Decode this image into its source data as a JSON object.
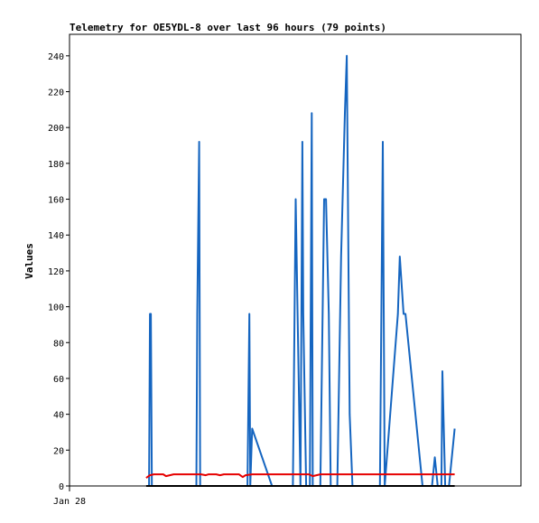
{
  "chart_data": {
    "type": "line",
    "title": "Telemetry for OE5YDL-8 over last 96 hours (79 points)",
    "xlabel": "",
    "ylabel": "Values",
    "x_ticks": [
      "Jan 28"
    ],
    "ylim": [
      0,
      252
    ],
    "y_ticks": [
      0,
      20,
      40,
      60,
      80,
      100,
      120,
      140,
      160,
      180,
      200,
      220,
      240
    ],
    "grid": false,
    "colors": {
      "blue": "#1565c0",
      "red": "#e60000",
      "black": "#000000"
    },
    "series": [
      {
        "color": "#1565c0",
        "points": [
          [
            26.0,
            0
          ],
          [
            26.1,
            0
          ],
          [
            26.2,
            96
          ],
          [
            26.3,
            96
          ],
          [
            26.4,
            0
          ],
          [
            31.0,
            0
          ],
          [
            31.1,
            0
          ],
          [
            31.2,
            96
          ],
          [
            31.4,
            192
          ],
          [
            31.5,
            0
          ],
          [
            36.5,
            0
          ],
          [
            36.7,
            96
          ],
          [
            36.8,
            0
          ],
          [
            37.0,
            32
          ],
          [
            39.1,
            0
          ],
          [
            41.3,
            0
          ],
          [
            41.6,
            160
          ],
          [
            42.1,
            0
          ],
          [
            42.3,
            192
          ],
          [
            42.4,
            96
          ],
          [
            42.7,
            0
          ],
          [
            43.1,
            0
          ],
          [
            43.3,
            208
          ],
          [
            43.4,
            0
          ],
          [
            43.7,
            0
          ],
          [
            44.2,
            0
          ],
          [
            44.6,
            160
          ],
          [
            44.8,
            160
          ],
          [
            45.1,
            96
          ],
          [
            45.3,
            0
          ],
          [
            45.8,
            0
          ],
          [
            46.0,
            0
          ],
          [
            46.4,
            128
          ],
          [
            46.8,
            208
          ],
          [
            47.0,
            240
          ],
          [
            47.3,
            40
          ],
          [
            47.6,
            0
          ],
          [
            50.0,
            0
          ],
          [
            50.5,
            0
          ],
          [
            50.8,
            192
          ],
          [
            51.0,
            0
          ],
          [
            52.4,
            96
          ],
          [
            52.6,
            128
          ],
          [
            53.0,
            96
          ],
          [
            53.2,
            96
          ],
          [
            55.0,
            0
          ],
          [
            56.0,
            0
          ],
          [
            56.3,
            16
          ],
          [
            56.6,
            0
          ],
          [
            57.0,
            0
          ],
          [
            57.1,
            64
          ],
          [
            57.4,
            0
          ],
          [
            57.8,
            0
          ],
          [
            58.4,
            32
          ]
        ]
      },
      {
        "color": "#e60000",
        "points": [
          [
            25.8,
            4.5
          ],
          [
            26.2,
            6
          ],
          [
            26.6,
            6.5
          ],
          [
            27.6,
            6.5
          ],
          [
            27.9,
            5.5
          ],
          [
            28.3,
            6
          ],
          [
            28.7,
            6.5
          ],
          [
            31.6,
            6.5
          ],
          [
            32.1,
            6
          ],
          [
            32.4,
            6.5
          ],
          [
            33.0,
            6.5
          ],
          [
            33.2,
            6.5
          ],
          [
            33.6,
            6
          ],
          [
            34.0,
            6.5
          ],
          [
            35.6,
            6.5
          ],
          [
            36.0,
            5
          ],
          [
            36.3,
            6
          ],
          [
            37.0,
            6.5
          ],
          [
            37.5,
            6.5
          ],
          [
            40.5,
            6.5
          ],
          [
            41.0,
            6.5
          ],
          [
            43.0,
            6.5
          ],
          [
            43.4,
            5.5
          ],
          [
            43.8,
            6
          ],
          [
            44.2,
            6.5
          ],
          [
            58.4,
            6.5
          ]
        ]
      },
      {
        "color": "#000000",
        "points": [
          [
            25.8,
            0
          ],
          [
            58.4,
            0
          ]
        ]
      }
    ]
  }
}
